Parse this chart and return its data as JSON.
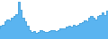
{
  "values": [
    35,
    40,
    42,
    48,
    52,
    50,
    55,
    58,
    62,
    85,
    70,
    55,
    48,
    40,
    32,
    28,
    30,
    27,
    28,
    32,
    30,
    28,
    29,
    30,
    32,
    31,
    30,
    32,
    34,
    35,
    35,
    38,
    40,
    38,
    42,
    40,
    42,
    44,
    46,
    50,
    48,
    55,
    58,
    55,
    52,
    58,
    60,
    65,
    60,
    68
  ],
  "line_color": "#4da6e0",
  "fill_color": "#5ab4f0",
  "background_color": "#ffffff",
  "ylim_min": 15
}
